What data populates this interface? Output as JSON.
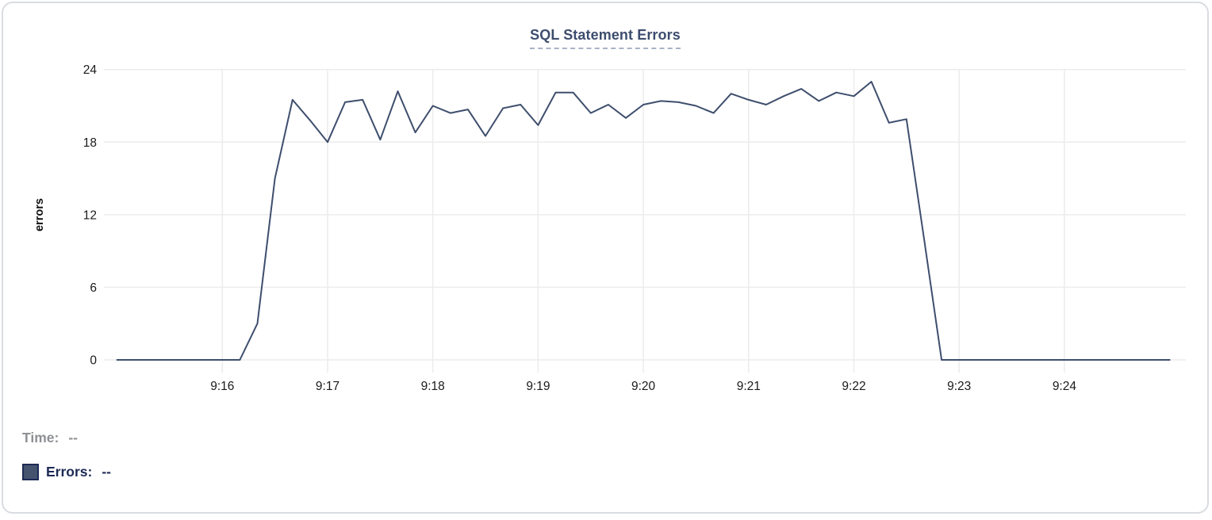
{
  "chart": {
    "title": "SQL Statement Errors",
    "ylabel": "errors"
  },
  "chart_data": {
    "type": "line",
    "title": "SQL Statement Errors",
    "xlabel": "",
    "ylabel": "errors",
    "series_name": "Errors",
    "x_start_time": "9:15:00",
    "x_end_time": "9:25:00",
    "point_interval_seconds": 10,
    "x_tick_labels": [
      "9:16",
      "9:17",
      "9:18",
      "9:19",
      "9:20",
      "9:21",
      "9:22",
      "9:23",
      "9:24"
    ],
    "y_ticks": [
      0,
      6,
      12,
      18,
      24
    ],
    "ylim": [
      0,
      24
    ],
    "grid": true,
    "legend_position": "below-left",
    "values": [
      0,
      0,
      0,
      0,
      0,
      0,
      0,
      0,
      3,
      15,
      21.5,
      19.8,
      18,
      21.3,
      21.5,
      18.2,
      22.2,
      18.8,
      21,
      20.4,
      20.7,
      18.5,
      20.8,
      21.1,
      19.4,
      22.1,
      22.1,
      20.4,
      21.1,
      20,
      21.1,
      21.4,
      21.3,
      21,
      20.4,
      22,
      21.5,
      21.1,
      21.8,
      22.4,
      21.4,
      22.1,
      21.8,
      23,
      19.6,
      19.9,
      10,
      0,
      0,
      0,
      0,
      0,
      0,
      0,
      0,
      0,
      0,
      0,
      0,
      0,
      0
    ]
  },
  "tooltip": {
    "time_label": "Time:",
    "time_value": "--",
    "errors_label": "Errors:",
    "errors_value": "--"
  },
  "colors": {
    "line": "#3e4e6d",
    "title_text": "#3d4d6e",
    "title_underline": "#a9b2c6",
    "grid": "#ececec",
    "tick_text": "#1a1a1a",
    "time_text": "#8e9094",
    "errors_text": "#1d2a55",
    "swatch_fill": "#46536e",
    "swatch_border": "#1d2a55",
    "card_border": "#d9dce1"
  }
}
